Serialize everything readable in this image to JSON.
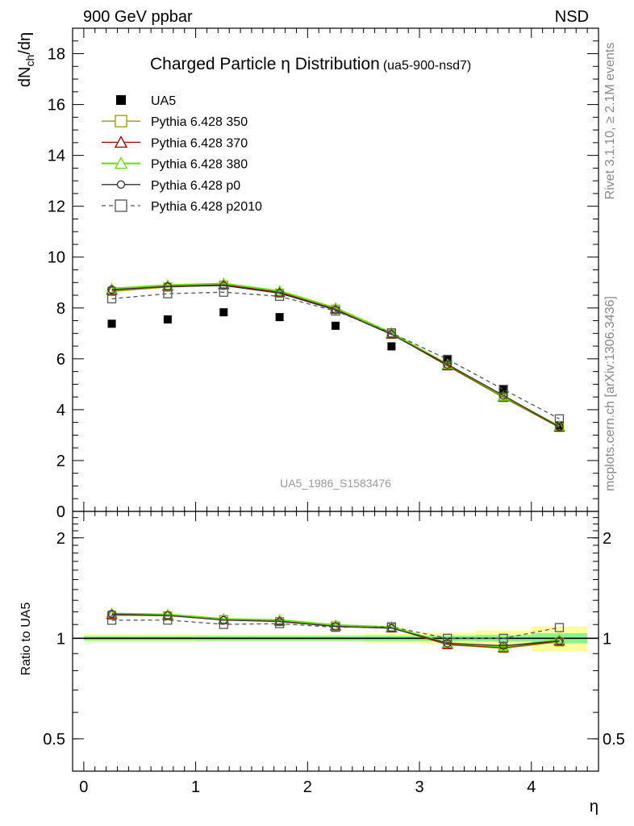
{
  "header": {
    "left": "900 GeV ppbar",
    "right": "NSD"
  },
  "side_text": {
    "rivet": "Rivet 3.1.10, ≥ 2.1M events",
    "mcplots": "mcplots.cern.ch [arXiv:1306.3436]"
  },
  "chart_data": [
    {
      "type": "scatter",
      "panel": "main",
      "title": "Charged Particle η Distribution",
      "title_tag": "(ua5-900-nsd7)",
      "xlabel": "η",
      "ylabel": "dN_ch/dη",
      "ylabel_parts": {
        "a": "dN",
        "sub": "ch",
        "b": "/dη"
      },
      "watermark": "UA5_1986_S1583476",
      "xlim": [
        -0.1,
        4.6
      ],
      "ylim": [
        0,
        19
      ],
      "yticks": [
        0,
        2,
        4,
        6,
        8,
        10,
        12,
        14,
        16,
        18
      ],
      "x": [
        0.25,
        0.75,
        1.25,
        1.75,
        2.25,
        2.75,
        3.25,
        3.75,
        4.25
      ],
      "legend_position": "top-left",
      "series": [
        {
          "name": "UA5",
          "style": "data",
          "color": "#000000",
          "marker": "square-filled",
          "values": [
            7.38,
            7.55,
            7.83,
            7.64,
            7.3,
            6.49,
            5.98,
            4.8,
            3.38
          ],
          "errors": [
            0.12,
            0.12,
            0.13,
            0.13,
            0.12,
            0.12,
            0.11,
            0.11,
            0.12
          ]
        },
        {
          "name": "Pythia 6.428 350",
          "color": "#999900",
          "marker": "square-open",
          "dash": "",
          "values": [
            8.65,
            8.82,
            8.9,
            8.58,
            7.95,
            6.97,
            5.72,
            4.48,
            3.3
          ]
        },
        {
          "name": "Pythia 6.428 370",
          "color": "#990000",
          "marker": "triangle-open",
          "dash": "",
          "values": [
            8.7,
            8.86,
            8.92,
            8.62,
            7.96,
            6.98,
            5.74,
            4.5,
            3.32
          ]
        },
        {
          "name": "Pythia 6.428 380",
          "color": "#66dd00",
          "marker": "triangle-open",
          "dash": "",
          "values": [
            8.76,
            8.9,
            8.96,
            8.67,
            8.0,
            7.02,
            5.78,
            4.53,
            3.35
          ]
        },
        {
          "name": "Pythia 6.428 p0",
          "color": "#333333",
          "marker": "circle-open",
          "dash": "",
          "values": [
            8.72,
            8.84,
            8.88,
            8.58,
            7.92,
            6.96,
            5.78,
            4.56,
            3.32
          ]
        },
        {
          "name": "Pythia 6.428 p2010",
          "color": "#555555",
          "marker": "square-open",
          "dash": "5,4",
          "values": [
            8.36,
            8.56,
            8.62,
            8.46,
            7.88,
            7.02,
            5.98,
            4.8,
            3.64
          ]
        }
      ]
    },
    {
      "type": "scatter",
      "panel": "ratio",
      "xlabel": "η",
      "ylabel": "Ratio to UA5",
      "log_y": true,
      "xlim": [
        -0.1,
        4.6
      ],
      "ylim": [
        0.4,
        2.4
      ],
      "yticks": [
        0.5,
        1,
        2
      ],
      "xticks": [
        0,
        1,
        2,
        3,
        4
      ],
      "x": [
        0.25,
        0.75,
        1.25,
        1.75,
        2.25,
        2.75,
        3.25,
        3.75,
        4.25
      ],
      "band_inner": [
        0.016,
        0.016,
        0.017,
        0.017,
        0.017,
        0.019,
        0.019,
        0.023,
        0.035
      ],
      "band_outer": [
        0.027,
        0.027,
        0.026,
        0.026,
        0.026,
        0.032,
        0.04,
        0.055,
        0.085
      ],
      "series": [
        {
          "name": "Pythia 6.428 350",
          "color": "#999900",
          "marker": "square-open",
          "dash": "",
          "values": [
            1.172,
            1.168,
            1.137,
            1.123,
            1.089,
            1.074,
            0.957,
            0.933,
            0.976
          ]
        },
        {
          "name": "Pythia 6.428 370",
          "color": "#990000",
          "marker": "triangle-open",
          "dash": "",
          "values": [
            1.179,
            1.174,
            1.139,
            1.128,
            1.09,
            1.076,
            0.96,
            0.938,
            0.982
          ]
        },
        {
          "name": "Pythia 6.428 380",
          "color": "#66dd00",
          "marker": "triangle-open",
          "dash": "",
          "values": [
            1.187,
            1.179,
            1.144,
            1.135,
            1.096,
            1.082,
            0.967,
            0.944,
            0.991
          ]
        },
        {
          "name": "Pythia 6.428 p0",
          "color": "#333333",
          "marker": "circle-open",
          "dash": "",
          "values": [
            1.182,
            1.171,
            1.134,
            1.123,
            1.085,
            1.072,
            0.967,
            0.95,
            0.982
          ]
        },
        {
          "name": "Pythia 6.428 p2010",
          "color": "#555555",
          "marker": "square-open",
          "dash": "5,4",
          "values": [
            1.133,
            1.134,
            1.101,
            1.107,
            1.079,
            1.082,
            1.0,
            1.0,
            1.077
          ]
        }
      ]
    }
  ]
}
